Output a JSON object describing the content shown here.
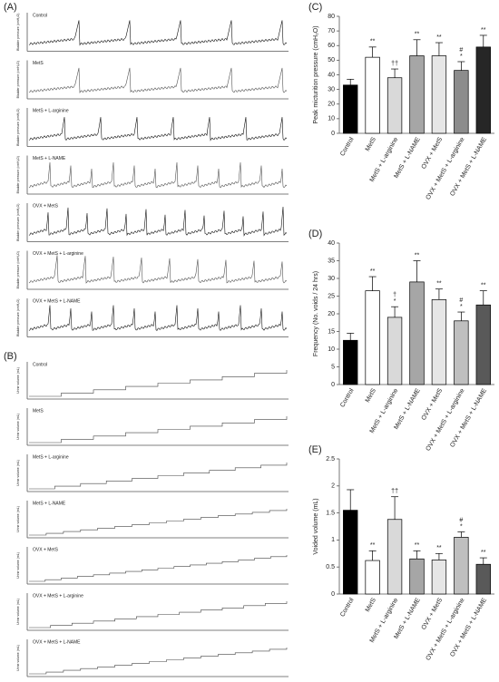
{
  "panels": [
    {
      "label": "(A)",
      "y_label": "Bladder pressure (cmH₂O)",
      "traces": [
        "Control",
        "MetS",
        "MetS + L-arginine",
        "MetS + L-NAME",
        "OVX + MetS",
        "OVX + MetS + L-arginine",
        "OVX + MetS + L-NAME"
      ]
    },
    {
      "label": "(B)",
      "y_label": "Urine volume (mL)",
      "traces": [
        "Control",
        "MetS",
        "MetS + L-arginine",
        "MetS + L-NAME",
        "OVX + MetS",
        "OVX + MetS + L-arginine",
        "OVX + MetS + L-NAME"
      ]
    }
  ],
  "chart_data": [
    {
      "type": "bar",
      "label": "(C)",
      "y_label": "Peak micturition pressure (cmH₂O)",
      "categories": [
        "Control",
        "MetS",
        "MetS + L-arginine",
        "MetS + L-NAME",
        "OVX + MetS",
        "OVX + MetS + L-arginine",
        "OVX + MetS + L-NAME"
      ],
      "values": [
        33,
        52,
        38,
        53,
        53,
        43,
        59
      ],
      "errors": [
        4,
        7,
        6,
        11,
        9,
        6,
        8
      ],
      "annotations": [
        [],
        [
          "**"
        ],
        [
          "††"
        ],
        [
          "**"
        ],
        [
          "**"
        ],
        [
          "#",
          "*"
        ],
        [
          "**"
        ]
      ],
      "colors": [
        "#000000",
        "#ffffff",
        "#d9d9d9",
        "#a6a6a6",
        "#e6e6e6",
        "#8c8c8c",
        "#262626"
      ],
      "ylim": [
        0,
        80
      ],
      "yticks": [
        0,
        10,
        20,
        30,
        40,
        50,
        60,
        70,
        80
      ]
    },
    {
      "type": "bar",
      "label": "(D)",
      "y_label": "Frequency  (No. voids / 24 hrs)",
      "categories": [
        "Control",
        "MetS",
        "MetS + L-arginine",
        "MetS + L-NAME",
        "OVX + MetS",
        "OVX + MetS + L-arginine",
        "OVX + MetS + L-NAME"
      ],
      "values": [
        12.5,
        26.5,
        19,
        29,
        24,
        18,
        22.5
      ],
      "errors": [
        2,
        4,
        3,
        6,
        3,
        2.5,
        4
      ],
      "annotations": [
        [],
        [
          "**"
        ],
        [
          "†",
          "*"
        ],
        [
          "**"
        ],
        [
          "**"
        ],
        [
          "#",
          "*"
        ],
        [
          "**"
        ]
      ],
      "colors": [
        "#000000",
        "#ffffff",
        "#d9d9d9",
        "#a6a6a6",
        "#e6e6e6",
        "#bfbfbf",
        "#595959"
      ],
      "ylim": [
        0,
        40
      ],
      "yticks": [
        0,
        5,
        10,
        15,
        20,
        25,
        30,
        35,
        40
      ]
    },
    {
      "type": "bar",
      "label": "(E)",
      "y_label": "Voided volume (mL)",
      "categories": [
        "Control",
        "MetS",
        "MetS + L-arginine",
        "MetS + L-NAME",
        "OVX + MetS",
        "OVX + MetS + L-arginine",
        "OVX + MetS + L-NAME"
      ],
      "values": [
        1.55,
        0.62,
        1.38,
        0.65,
        0.63,
        1.05,
        0.55
      ],
      "errors": [
        0.38,
        0.18,
        0.42,
        0.15,
        0.12,
        0.1,
        0.12
      ],
      "annotations": [
        [],
        [
          "**"
        ],
        [
          "††"
        ],
        [
          "**"
        ],
        [
          "**"
        ],
        [
          "#",
          "*"
        ],
        [
          "**"
        ]
      ],
      "colors": [
        "#000000",
        "#ffffff",
        "#d9d9d9",
        "#a6a6a6",
        "#e6e6e6",
        "#bfbfbf",
        "#595959"
      ],
      "ylim": [
        0,
        2.5
      ],
      "yticks": [
        0,
        0.5,
        1,
        1.5,
        2,
        2.5
      ]
    }
  ]
}
